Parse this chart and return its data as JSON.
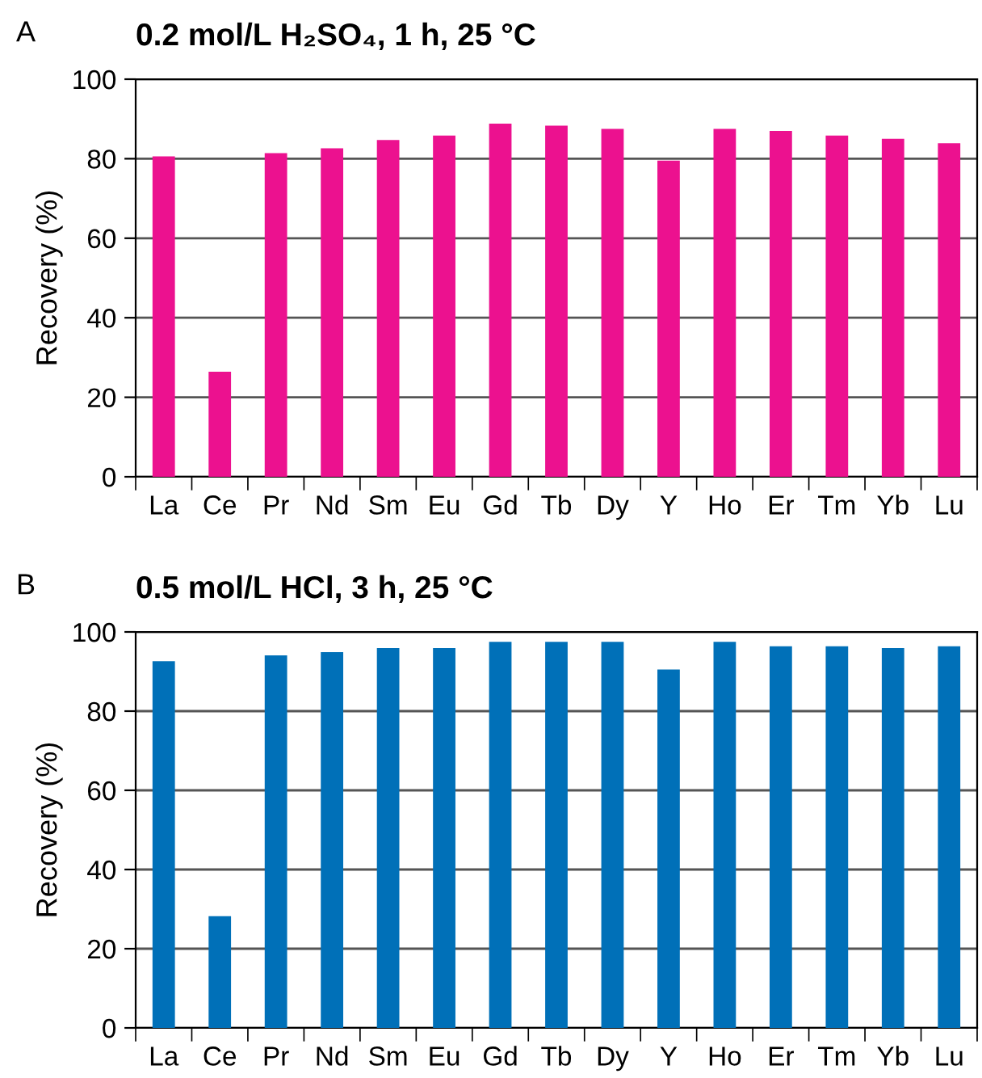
{
  "chart_data": [
    {
      "type": "bar",
      "title": "0.2 mol/L H₂SO₄, 1 h, 25 °C",
      "ylabel": "Recovery (%)",
      "annotations": [
        "A"
      ],
      "categories": [
        "La",
        "Ce",
        "Pr",
        "Nd",
        "Sm",
        "Eu",
        "Gd",
        "Tb",
        "Dy",
        "Y",
        "Ho",
        "Er",
        "Tm",
        "Yb",
        "Lu"
      ],
      "values": [
        80.6,
        26.4,
        81.4,
        82.6,
        84.7,
        85.8,
        88.8,
        88.3,
        87.5,
        79.5,
        87.5,
        87,
        85.8,
        85,
        83.9
      ],
      "color": "#ec118f",
      "ylim": [
        0,
        100
      ],
      "yticks": [
        0,
        20,
        40,
        60,
        80,
        100
      ],
      "grid": "y",
      "legend": false
    },
    {
      "type": "bar",
      "title": "0.5 mol/L HCl, 3 h, 25 °C",
      "ylabel": "Recovery (%)",
      "annotations": [
        "B"
      ],
      "categories": [
        "La",
        "Ce",
        "Pr",
        "Nd",
        "Sm",
        "Eu",
        "Gd",
        "Tb",
        "Dy",
        "Y",
        "Ho",
        "Er",
        "Tm",
        "Yb",
        "Lu"
      ],
      "values": [
        92.6,
        28.2,
        94.1,
        94.9,
        95.9,
        95.9,
        97.5,
        97.5,
        97.5,
        90.5,
        97.5,
        96.4,
        96.4,
        95.9,
        96.4
      ],
      "color": "#0070b8",
      "ylim": [
        0,
        100
      ],
      "yticks": [
        0,
        20,
        40,
        60,
        80,
        100
      ],
      "grid": "y",
      "legend": false
    }
  ]
}
